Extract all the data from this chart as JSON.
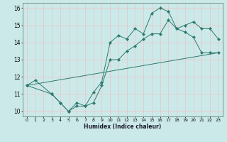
{
  "xlabel": "Humidex (Indice chaleur)",
  "xlim": [
    -0.5,
    23.5
  ],
  "ylim": [
    9.7,
    16.3
  ],
  "xticks": [
    0,
    1,
    2,
    3,
    4,
    5,
    6,
    7,
    8,
    9,
    10,
    11,
    12,
    13,
    14,
    15,
    16,
    17,
    18,
    19,
    20,
    21,
    22,
    23
  ],
  "yticks": [
    10,
    11,
    12,
    13,
    14,
    15,
    16
  ],
  "bg_color": "#cce9e9",
  "grid_color": "#e8c8c8",
  "line_color": "#2d7a6e",
  "line1_x": [
    0,
    1,
    3,
    4,
    5,
    6,
    7,
    8,
    9,
    10,
    11,
    12,
    13,
    14,
    15,
    16,
    17,
    18,
    19,
    20,
    21,
    22,
    23
  ],
  "line1_y": [
    11.5,
    11.8,
    11.0,
    10.5,
    10.0,
    10.3,
    10.3,
    11.1,
    11.7,
    14.0,
    14.4,
    14.2,
    14.8,
    14.5,
    15.7,
    16.0,
    15.8,
    14.8,
    14.6,
    14.3,
    13.4,
    13.4,
    13.4
  ],
  "line2_x": [
    0,
    3,
    4,
    5,
    6,
    7,
    8,
    9,
    10,
    11,
    12,
    13,
    14,
    15,
    16,
    17,
    18,
    19,
    20,
    21,
    22,
    23
  ],
  "line2_y": [
    11.5,
    11.0,
    10.5,
    10.0,
    10.5,
    10.3,
    10.5,
    11.5,
    13.0,
    13.0,
    13.5,
    13.8,
    14.2,
    14.5,
    14.5,
    15.3,
    14.8,
    15.0,
    15.2,
    14.8,
    14.8,
    14.2
  ],
  "line3_x": [
    0,
    23
  ],
  "line3_y": [
    11.5,
    13.4
  ]
}
